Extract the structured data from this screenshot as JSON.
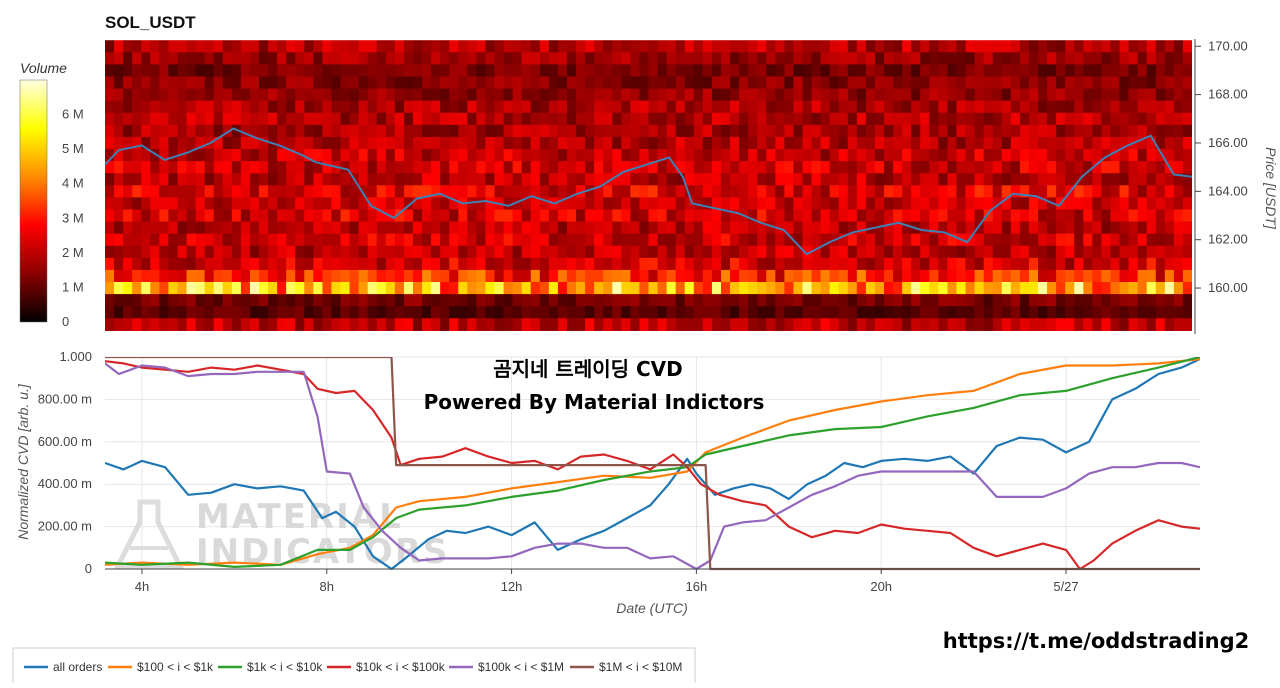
{
  "chart_data": [
    {
      "type": "heatmap",
      "title": "SOL_USDT",
      "colorbar": {
        "label": "Volume",
        "ticks": [
          "0",
          "1 M",
          "2 M",
          "3 M",
          "4 M",
          "5 M",
          "6 M"
        ],
        "range": [
          0,
          7
        ],
        "colors": [
          "#000000",
          "#8b0000",
          "#ff0000",
          "#ff8c00",
          "#ffff00",
          "#ffffe0"
        ]
      },
      "y_axis": {
        "label": "Price [USDT]",
        "ticks": [
          "160.00",
          "162.00",
          "164.00",
          "166.00",
          "168.00",
          "170.00"
        ],
        "range": [
          158.1,
          170.3
        ]
      },
      "price_bands": [
        {
          "price": 170.0,
          "mean": 1.9
        },
        {
          "price": 169.5,
          "mean": 1.6
        },
        {
          "price": 169.0,
          "mean": 1.2
        },
        {
          "price": 168.5,
          "mean": 1.4
        },
        {
          "price": 168.0,
          "mean": 1.5
        },
        {
          "price": 167.5,
          "mean": 1.8
        },
        {
          "price": 167.0,
          "mean": 1.9
        },
        {
          "price": 166.5,
          "mean": 1.8
        },
        {
          "price": 166.0,
          "mean": 1.9
        },
        {
          "price": 165.5,
          "mean": 2.1
        },
        {
          "price": 165.0,
          "mean": 2.2
        },
        {
          "price": 164.5,
          "mean": 2.0
        },
        {
          "price": 164.0,
          "mean": 2.4
        },
        {
          "price": 163.5,
          "mean": 2.1
        },
        {
          "price": 163.0,
          "mean": 2.3
        },
        {
          "price": 162.5,
          "mean": 2.0
        },
        {
          "price": 162.0,
          "mean": 2.2
        },
        {
          "price": 161.5,
          "mean": 2.0
        },
        {
          "price": 161.0,
          "mean": 2.3
        },
        {
          "price": 160.5,
          "mean": 3.0
        },
        {
          "price": 160.0,
          "mean": 4.8
        },
        {
          "price": 159.5,
          "mean": 1.2
        },
        {
          "price": 159.0,
          "mean": 0.9
        },
        {
          "price": 158.5,
          "mean": 2.0
        }
      ],
      "price_series": {
        "x": [
          3.2,
          3.5,
          4.0,
          4.5,
          5.0,
          5.5,
          6.0,
          6.5,
          7.0,
          7.5,
          7.8,
          8.5,
          9.0,
          9.5,
          10.0,
          10.5,
          11.0,
          11.5,
          12.0,
          12.5,
          13.0,
          13.5,
          14.0,
          14.5,
          15.0,
          15.5,
          15.8,
          16.0,
          16.5,
          17.0,
          17.5,
          18.0,
          18.5,
          19.0,
          19.5,
          20.0,
          20.5,
          21.0,
          21.5,
          22.0,
          22.5,
          23.0,
          23.5,
          24.0,
          24.5,
          25.0,
          25.5,
          26.0,
          26.5,
          26.9
        ],
        "y": [
          165.1,
          165.7,
          165.9,
          165.3,
          165.6,
          166.0,
          166.6,
          166.2,
          165.9,
          165.5,
          165.2,
          164.9,
          163.4,
          162.9,
          163.7,
          163.9,
          163.5,
          163.6,
          163.4,
          163.8,
          163.5,
          163.9,
          164.2,
          164.8,
          165.1,
          165.4,
          164.6,
          163.5,
          163.3,
          163.1,
          162.7,
          162.4,
          161.4,
          161.9,
          162.3,
          162.5,
          162.7,
          162.4,
          162.3,
          161.9,
          163.2,
          163.9,
          163.8,
          163.4,
          164.6,
          165.4,
          165.9,
          166.3,
          164.7,
          164.6
        ]
      }
    },
    {
      "type": "line",
      "x_axis": {
        "label": "Date (UTC)",
        "ticks": [
          {
            "pos": 4,
            "label": "4h"
          },
          {
            "pos": 8,
            "label": "8h"
          },
          {
            "pos": 12,
            "label": "12h"
          },
          {
            "pos": 16,
            "label": "16h"
          },
          {
            "pos": 20,
            "label": "20h"
          },
          {
            "pos": 24,
            "label": "5/27"
          }
        ],
        "range": [
          3.2,
          26.9
        ]
      },
      "y_axis": {
        "label": "Normalized CVD [arb. u.]",
        "ticks": [
          {
            "value": 0,
            "label": "0"
          },
          {
            "value": 0.2,
            "label": "200.00 m"
          },
          {
            "value": 0.4,
            "label": "400.00 m"
          },
          {
            "value": 0.6,
            "label": "600.00 m"
          },
          {
            "value": 0.8,
            "label": "800.00 m"
          },
          {
            "value": 1.0,
            "label": "1.000"
          }
        ],
        "range": [
          0,
          1
        ]
      },
      "grid": true,
      "legend_position": "bottom",
      "series": [
        {
          "name": "all orders",
          "color": "#1f77b4",
          "x": [
            3.2,
            3.6,
            4.0,
            4.5,
            5.0,
            5.5,
            6.0,
            6.5,
            7.0,
            7.5,
            7.9,
            8.2,
            8.6,
            9.0,
            9.4,
            9.7,
            10.2,
            10.6,
            11.0,
            11.5,
            12.0,
            12.5,
            13.0,
            13.5,
            14.0,
            14.5,
            15.0,
            15.4,
            15.8,
            16.0,
            16.4,
            16.8,
            17.2,
            17.6,
            18.0,
            18.4,
            18.8,
            19.2,
            19.6,
            20.0,
            20.5,
            21.0,
            21.5,
            22.0,
            22.5,
            23.0,
            23.5,
            24.0,
            24.5,
            25.0,
            25.5,
            26.0,
            26.5,
            26.9
          ],
          "y": [
            0.5,
            0.47,
            0.51,
            0.48,
            0.35,
            0.36,
            0.4,
            0.38,
            0.39,
            0.37,
            0.24,
            0.27,
            0.2,
            0.06,
            0.0,
            0.05,
            0.14,
            0.18,
            0.17,
            0.2,
            0.16,
            0.22,
            0.09,
            0.14,
            0.18,
            0.24,
            0.3,
            0.4,
            0.52,
            0.45,
            0.35,
            0.38,
            0.4,
            0.38,
            0.33,
            0.4,
            0.44,
            0.5,
            0.48,
            0.51,
            0.52,
            0.51,
            0.53,
            0.45,
            0.58,
            0.62,
            0.61,
            0.55,
            0.6,
            0.8,
            0.85,
            0.92,
            0.95,
            0.99
          ]
        },
        {
          "name": "$100 < i < $1k",
          "color": "#ff7f0e",
          "x": [
            3.2,
            4.0,
            5.0,
            6.0,
            7.0,
            7.8,
            8.5,
            9.0,
            9.5,
            10.0,
            11.0,
            12.0,
            13.0,
            14.0,
            15.0,
            15.8,
            16.2,
            17.0,
            18.0,
            19.0,
            20.0,
            21.0,
            22.0,
            23.0,
            24.0,
            25.0,
            26.0,
            26.9
          ],
          "y": [
            0.02,
            0.03,
            0.02,
            0.03,
            0.02,
            0.07,
            0.1,
            0.16,
            0.29,
            0.32,
            0.34,
            0.38,
            0.41,
            0.44,
            0.43,
            0.46,
            0.55,
            0.62,
            0.7,
            0.75,
            0.79,
            0.82,
            0.84,
            0.92,
            0.96,
            0.96,
            0.97,
            0.99
          ]
        },
        {
          "name": "$1k < i < $10k",
          "color": "#2ca02c",
          "x": [
            3.2,
            4.0,
            5.0,
            6.0,
            7.0,
            7.8,
            8.5,
            9.0,
            9.5,
            10.0,
            11.0,
            12.0,
            13.0,
            14.0,
            15.0,
            15.8,
            16.2,
            17.0,
            18.0,
            19.0,
            20.0,
            21.0,
            22.0,
            23.0,
            24.0,
            25.0,
            26.0,
            26.9
          ],
          "y": [
            0.03,
            0.02,
            0.03,
            0.01,
            0.02,
            0.09,
            0.09,
            0.15,
            0.24,
            0.28,
            0.3,
            0.34,
            0.37,
            0.42,
            0.46,
            0.48,
            0.54,
            0.58,
            0.63,
            0.66,
            0.67,
            0.72,
            0.76,
            0.82,
            0.84,
            0.9,
            0.95,
            1.0
          ]
        },
        {
          "name": "$10k < i < $100k",
          "color": "#d62728",
          "x": [
            3.2,
            3.6,
            4.0,
            4.5,
            5.0,
            5.5,
            6.0,
            6.5,
            7.0,
            7.5,
            7.8,
            8.2,
            8.6,
            9.0,
            9.4,
            9.6,
            10.0,
            10.5,
            11.0,
            11.5,
            12.0,
            12.5,
            13.0,
            13.5,
            14.0,
            14.5,
            15.0,
            15.5,
            15.8,
            16.1,
            16.5,
            17.0,
            17.5,
            18.0,
            18.5,
            19.0,
            19.5,
            20.0,
            20.5,
            21.0,
            21.5,
            22.0,
            22.5,
            23.0,
            23.5,
            24.0,
            24.3,
            24.6,
            25.0,
            25.5,
            26.0,
            26.5,
            26.9
          ],
          "y": [
            0.98,
            0.97,
            0.95,
            0.94,
            0.93,
            0.95,
            0.94,
            0.96,
            0.94,
            0.92,
            0.85,
            0.83,
            0.84,
            0.75,
            0.62,
            0.49,
            0.52,
            0.53,
            0.57,
            0.53,
            0.5,
            0.51,
            0.47,
            0.53,
            0.54,
            0.51,
            0.47,
            0.54,
            0.48,
            0.4,
            0.35,
            0.32,
            0.3,
            0.2,
            0.15,
            0.18,
            0.17,
            0.21,
            0.19,
            0.18,
            0.17,
            0.1,
            0.06,
            0.09,
            0.12,
            0.09,
            0.0,
            0.04,
            0.12,
            0.18,
            0.23,
            0.2,
            0.19
          ]
        },
        {
          "name": "$100k < i < $1M",
          "color": "#9467bd",
          "x": [
            3.2,
            3.5,
            4.0,
            4.5,
            5.0,
            5.5,
            6.0,
            6.5,
            7.0,
            7.5,
            7.8,
            8.0,
            8.5,
            8.8,
            9.2,
            9.6,
            10.0,
            10.5,
            11.0,
            11.5,
            12.0,
            12.5,
            13.0,
            13.5,
            14.0,
            14.5,
            15.0,
            15.5,
            16.0,
            16.3,
            16.6,
            17.0,
            17.5,
            18.0,
            18.5,
            19.0,
            19.5,
            20.0,
            20.5,
            21.0,
            21.5,
            22.0,
            22.5,
            23.0,
            23.5,
            24.0,
            24.5,
            25.0,
            25.5,
            26.0,
            26.5,
            26.9
          ],
          "y": [
            0.97,
            0.92,
            0.96,
            0.95,
            0.91,
            0.92,
            0.92,
            0.93,
            0.93,
            0.93,
            0.72,
            0.46,
            0.45,
            0.29,
            0.18,
            0.1,
            0.04,
            0.05,
            0.05,
            0.05,
            0.06,
            0.1,
            0.12,
            0.12,
            0.1,
            0.1,
            0.05,
            0.06,
            0.0,
            0.04,
            0.2,
            0.22,
            0.23,
            0.29,
            0.35,
            0.39,
            0.44,
            0.46,
            0.46,
            0.46,
            0.46,
            0.46,
            0.34,
            0.34,
            0.34,
            0.38,
            0.45,
            0.48,
            0.48,
            0.5,
            0.5,
            0.48
          ]
        },
        {
          "name": "$1M < i < $10M",
          "color": "#8c564b",
          "x": [
            3.2,
            9.4,
            9.5,
            9.6,
            16.1,
            16.2,
            16.3,
            26.9
          ],
          "y": [
            1.0,
            1.0,
            0.49,
            0.49,
            0.49,
            0.49,
            0.0,
            0.0
          ]
        }
      ]
    }
  ],
  "overlay": {
    "line1": "곰지네 트레이딩 CVD",
    "line2": "Powered By Material Indictors"
  },
  "watermark": {
    "line1": "MATERIAL",
    "line2": "INDICATORS"
  },
  "footer_url": "https://t.me/oddstrading2"
}
